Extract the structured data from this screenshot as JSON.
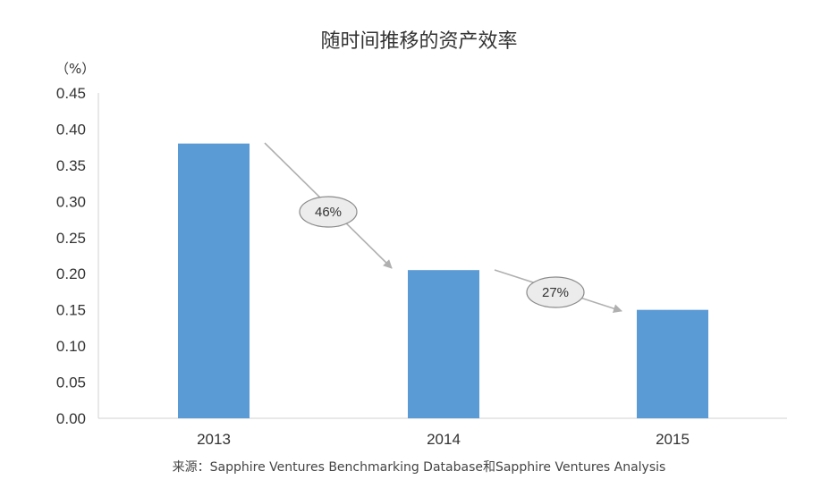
{
  "title": "随时间推移的资产效率",
  "unit_label": "（%）",
  "source": "来源：Sapphire Ventures Benchmarking Database和Sapphire Ventures Analysis",
  "colors": {
    "bar": "#5b9bd5",
    "axis": "#d0d0d0",
    "arrow": "#b0b0b0",
    "bubble_fill": "#ececec",
    "bubble_stroke": "#8a8a8a"
  },
  "chart_data": {
    "type": "bar",
    "categories": [
      "2013",
      "2014",
      "2015"
    ],
    "values": [
      0.38,
      0.205,
      0.15
    ],
    "title": "随时间推移的资产效率",
    "xlabel": "",
    "ylabel": "（%）",
    "ylim": [
      0,
      0.45
    ],
    "yticks": [
      "0.00",
      "0.05",
      "0.10",
      "0.15",
      "0.20",
      "0.25",
      "0.30",
      "0.35",
      "0.40",
      "0.45"
    ],
    "grid": false,
    "annotations": [
      {
        "from": "2013",
        "to": "2014",
        "label": "46%"
      },
      {
        "from": "2014",
        "to": "2015",
        "label": "27%"
      }
    ]
  }
}
